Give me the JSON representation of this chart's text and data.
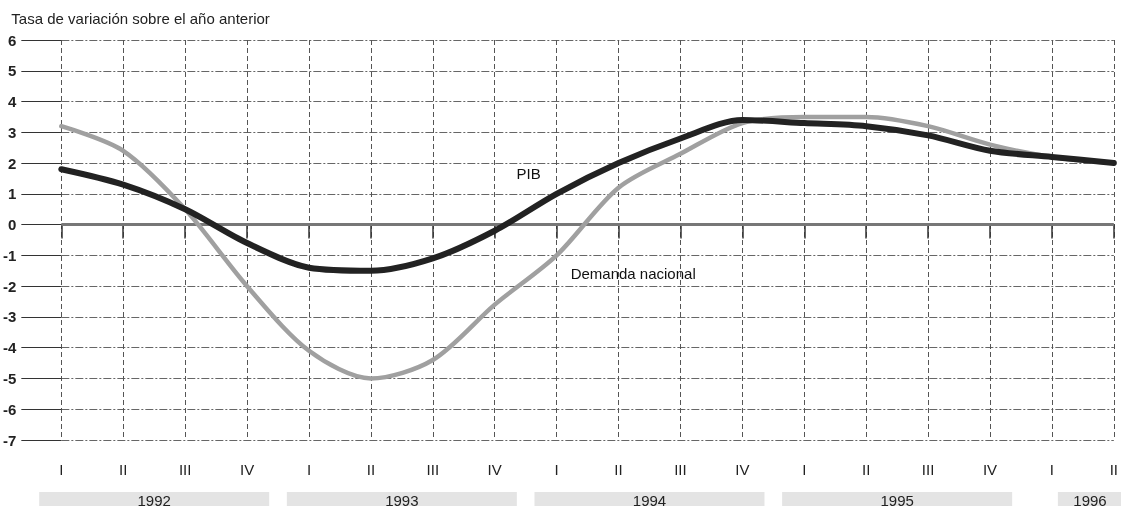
{
  "chart_data": {
    "type": "line",
    "ylabel": "Tasa de variación sobre el año anterior",
    "categories": [
      "I",
      "II",
      "III",
      "IV",
      "I",
      "II",
      "III",
      "IV",
      "I",
      "II",
      "III",
      "IV",
      "I",
      "II",
      "III",
      "IV",
      "I",
      "II"
    ],
    "series": [
      {
        "name": "PIB",
        "color": "#222222",
        "values": [
          1.8,
          1.3,
          0.5,
          -0.6,
          -1.4,
          -1.5,
          -1.1,
          -0.2,
          1.0,
          2.0,
          2.8,
          3.4,
          3.3,
          3.2,
          2.9,
          2.4,
          2.2,
          2.0
        ]
      },
      {
        "name": "Demanda nacional",
        "color": "#a0a0a0",
        "values": [
          3.2,
          2.4,
          0.5,
          -2.0,
          -4.1,
          -5.0,
          -4.4,
          -2.6,
          -1.0,
          1.2,
          2.3,
          3.3,
          3.5,
          3.5,
          3.2,
          2.6,
          2.2,
          2.0
        ]
      }
    ],
    "ylim": [
      -7,
      6
    ],
    "yticks": [
      -7,
      -6,
      -5,
      -4,
      -3,
      -2,
      -1,
      0,
      1,
      2,
      3,
      4,
      5,
      6
    ],
    "grid": true,
    "legend": false,
    "marker": "none",
    "line_style": "solid",
    "ref_lines": [
      {
        "axis": "y",
        "value": 0,
        "color": "#777777"
      }
    ],
    "annotations": [
      "1992",
      "1993",
      "1994",
      "1995",
      "1996"
    ]
  }
}
